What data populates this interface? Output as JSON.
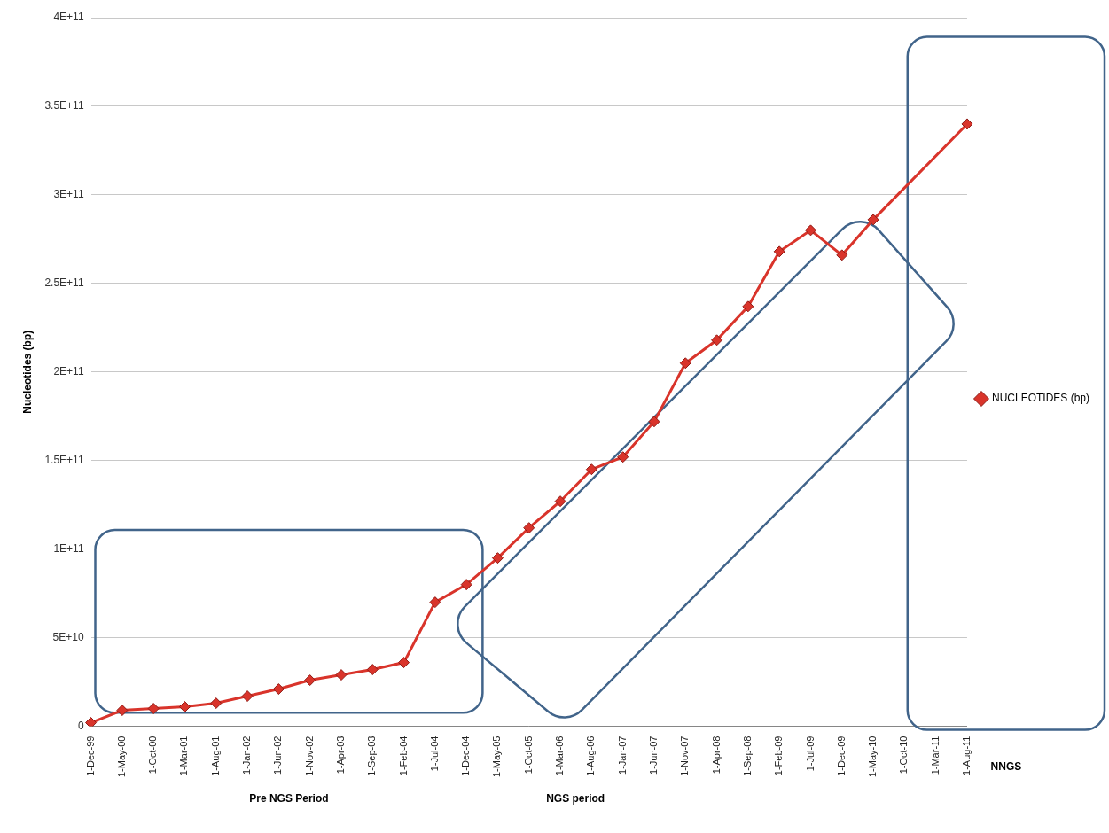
{
  "chart_data": {
    "type": "line",
    "y_label": "Nucleotides (bp)",
    "annotations": [
      "Pre NGS Period",
      "NGS period",
      "NNGS"
    ],
    "categories": [
      "1-Dec-99",
      "1-May-00",
      "1-Oct-00",
      "1-Mar-01",
      "1-Aug-01",
      "1-Jan-02",
      "1-Jun-02",
      "1-Nov-02",
      "1-Apr-03",
      "1-Sep-03",
      "1-Feb-04",
      "1-Jul-04",
      "1-Dec-04",
      "1-May-05",
      "1-Oct-05",
      "1-Mar-06",
      "1-Aug-06",
      "1-Jan-07",
      "1-Jun-07",
      "1-Nov-07",
      "1-Apr-08",
      "1-Sep-08",
      "1-Feb-09",
      "1-Jul-09",
      "1-Dec-09",
      "1-May-10",
      "1-Oct-10",
      "1-Mar-11",
      "1-Aug-11"
    ],
    "series": [
      {
        "name": "NUCLEOTIDES (bp)",
        "color": "#d9342b",
        "marker": "diamond",
        "line_style": "solid",
        "values": [
          2000000000,
          9000000000,
          10000000000,
          11000000000,
          13000000000,
          17000000000,
          21000000000,
          26000000000,
          29000000000,
          32000000000,
          36000000000,
          70000000000,
          80000000000,
          95000000000,
          112000000000,
          127000000000,
          145000000000,
          152000000000,
          172000000000,
          205000000000,
          218000000000,
          237000000000,
          268000000000,
          280000000000,
          266000000000,
          286000000000,
          null,
          null,
          340000000000
        ]
      }
    ],
    "ylim": [
      0,
      400000000000
    ],
    "yticks": [
      0,
      {
        "value": 50000000000,
        "label": "5E+10"
      },
      {
        "value": 100000000000,
        "label": "1E+11"
      },
      {
        "value": 150000000000,
        "label": "1.5E+11"
      },
      {
        "value": 200000000000,
        "label": "2E+11"
      },
      {
        "value": 250000000000,
        "label": "2.5E+11"
      },
      {
        "value": 300000000000,
        "label": "3E+11"
      },
      {
        "value": 350000000000,
        "label": "3.5E+11"
      },
      {
        "value": 400000000000,
        "label": "4E+11"
      }
    ],
    "grid": "y",
    "legend": "right"
  }
}
